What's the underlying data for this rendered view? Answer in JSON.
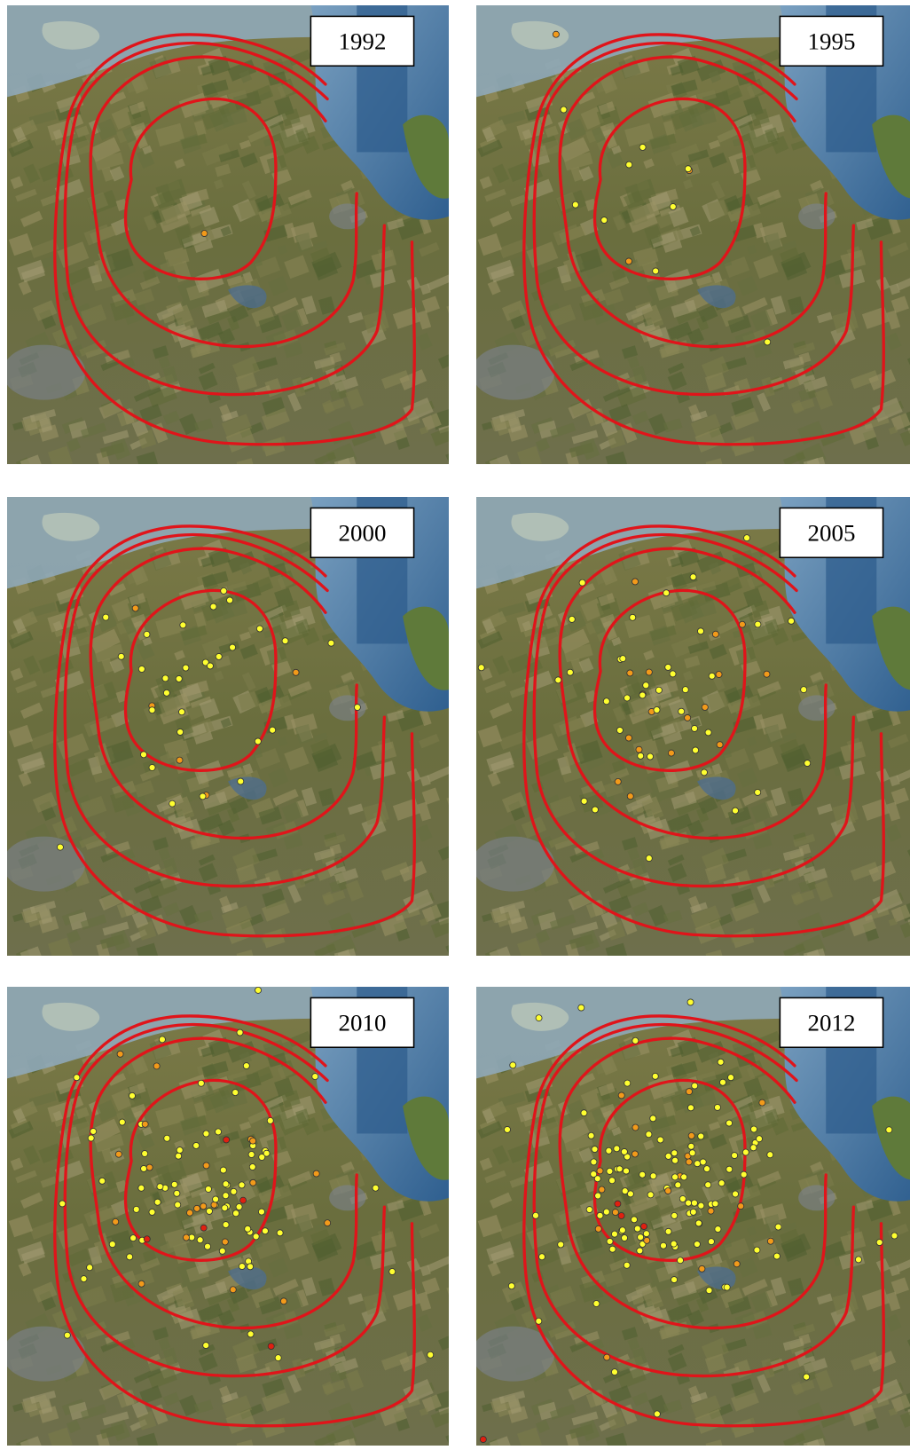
{
  "panels": [
    {
      "year": "1992"
    },
    {
      "year": "1995"
    },
    {
      "year": "2000"
    },
    {
      "year": "2005"
    },
    {
      "year": "2010"
    },
    {
      "year": "2012"
    }
  ]
}
